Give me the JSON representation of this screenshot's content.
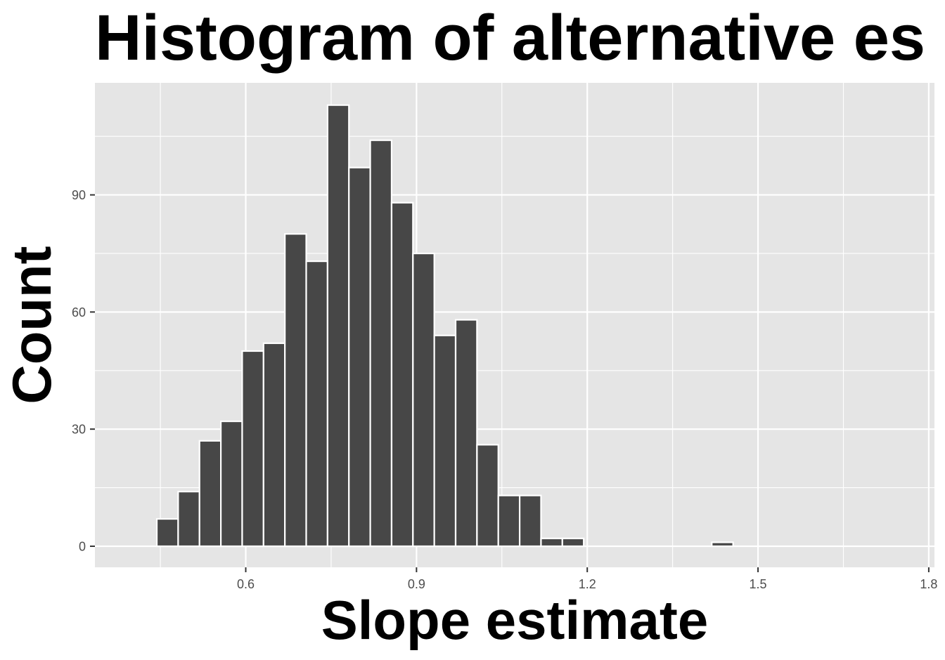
{
  "chart_data": {
    "type": "bar",
    "title": "Histogram of alternative es",
    "xlabel": "Slope estimate",
    "ylabel": "Count",
    "bin_width": 0.0375,
    "bins": [
      {
        "x": 0.4625,
        "count": 7
      },
      {
        "x": 0.5,
        "count": 14
      },
      {
        "x": 0.5375,
        "count": 27
      },
      {
        "x": 0.575,
        "count": 32
      },
      {
        "x": 0.6125,
        "count": 50
      },
      {
        "x": 0.65,
        "count": 52
      },
      {
        "x": 0.6875,
        "count": 80
      },
      {
        "x": 0.725,
        "count": 73
      },
      {
        "x": 0.7625,
        "count": 113
      },
      {
        "x": 0.8,
        "count": 97
      },
      {
        "x": 0.8375,
        "count": 104
      },
      {
        "x": 0.875,
        "count": 88
      },
      {
        "x": 0.9125,
        "count": 75
      },
      {
        "x": 0.95,
        "count": 54
      },
      {
        "x": 0.9875,
        "count": 58
      },
      {
        "x": 1.025,
        "count": 26
      },
      {
        "x": 1.0625,
        "count": 13
      },
      {
        "x": 1.1,
        "count": 13
      },
      {
        "x": 1.1375,
        "count": 2
      },
      {
        "x": 1.175,
        "count": 2
      },
      {
        "x": 1.4375,
        "count": 1
      }
    ],
    "xlim": [
      0.335,
      1.81
    ],
    "ylim": [
      -5.4,
      118.7
    ],
    "x_ticks": [
      "0.6",
      "0.9",
      "1.2",
      "1.5",
      "1.8"
    ],
    "y_ticks": [
      "0",
      "30",
      "60",
      "90"
    ],
    "grid": true,
    "colors": {
      "panel_background": "#e5e5e5",
      "grid_line": "#ffffff",
      "bar_fill": "#474747",
      "bar_outline": "#ffffff",
      "tick_label": "#4d4d4d",
      "tick_mark": "#333333",
      "text": "#000000"
    }
  }
}
